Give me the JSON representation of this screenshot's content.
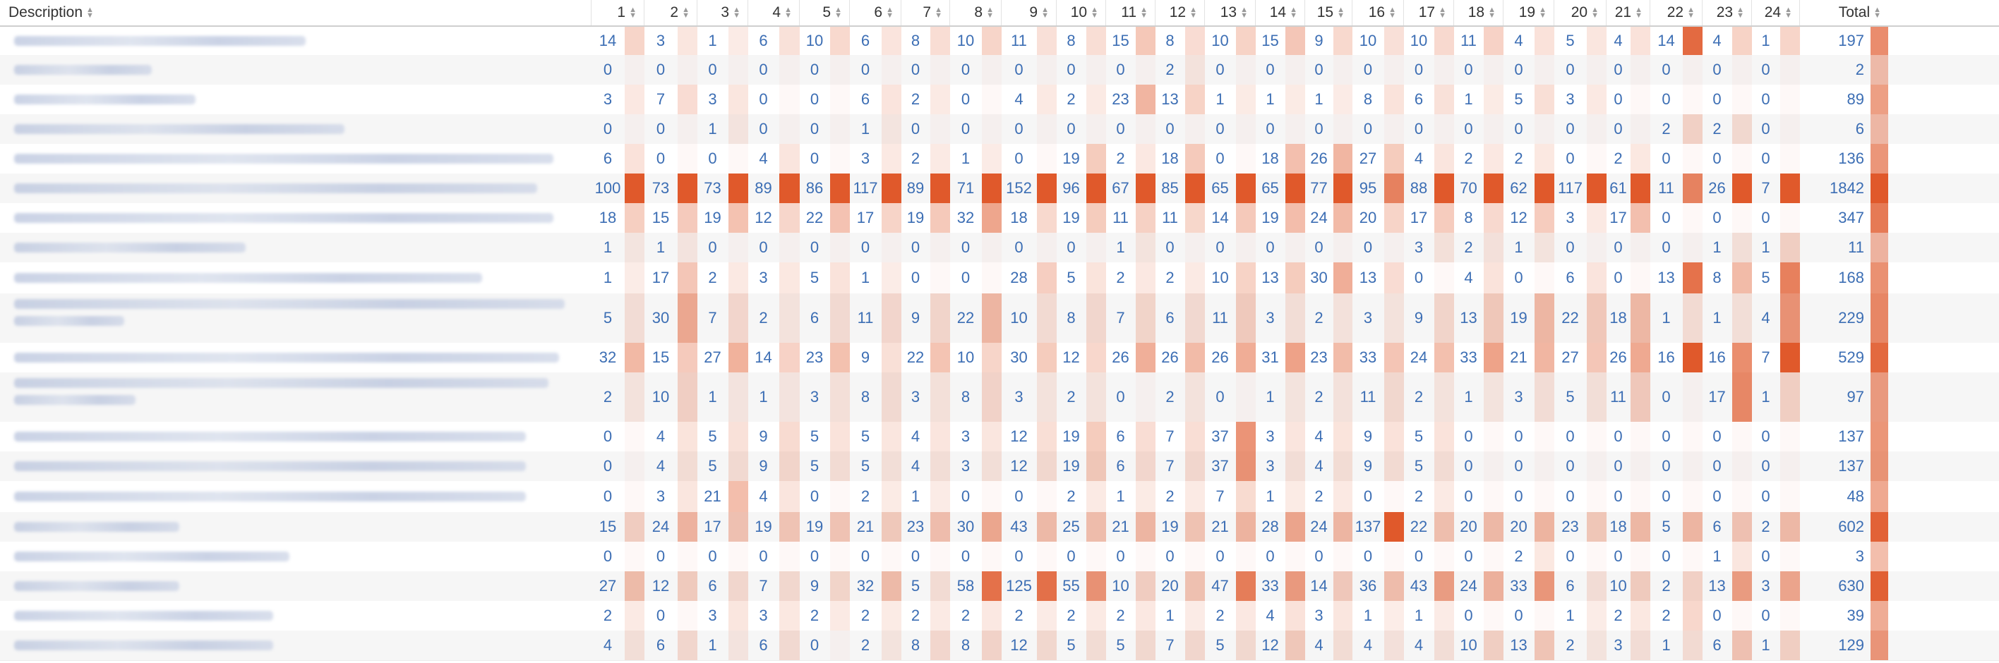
{
  "table": {
    "header": {
      "description_label": "Description",
      "columns": [
        "1",
        "2",
        "3",
        "4",
        "5",
        "6",
        "7",
        "8",
        "9",
        "10",
        "11",
        "12",
        "13",
        "14",
        "15",
        "16",
        "17",
        "18",
        "19",
        "20",
        "21",
        "22",
        "23",
        "24"
      ],
      "total_label": "Total",
      "sort_icon": "sort-icon"
    },
    "rows": [
      {
        "desc_lines": [
          0.53
        ],
        "values": [
          14,
          3,
          1,
          6,
          10,
          6,
          8,
          10,
          11,
          8,
          15,
          8,
          10,
          15,
          9,
          10,
          10,
          11,
          4,
          5,
          4,
          14,
          4,
          1
        ],
        "total": 197
      },
      {
        "desc_lines": [
          0.25
        ],
        "values": [
          0,
          0,
          0,
          0,
          0,
          0,
          0,
          0,
          0,
          0,
          0,
          2,
          0,
          0,
          0,
          0,
          0,
          0,
          0,
          0,
          0,
          0,
          0,
          0
        ],
        "total": 2
      },
      {
        "desc_lines": [
          0.33
        ],
        "values": [
          3,
          7,
          3,
          0,
          0,
          6,
          2,
          0,
          4,
          2,
          23,
          13,
          1,
          1,
          1,
          8,
          6,
          1,
          5,
          3,
          0,
          0,
          0,
          0
        ],
        "total": 89
      },
      {
        "desc_lines": [
          0.6
        ],
        "values": [
          0,
          0,
          1,
          0,
          0,
          1,
          0,
          0,
          0,
          0,
          0,
          0,
          0,
          0,
          0,
          0,
          0,
          0,
          0,
          0,
          0,
          2,
          2,
          0
        ],
        "total": 6
      },
      {
        "desc_lines": [
          0.98
        ],
        "values": [
          6,
          0,
          0,
          4,
          0,
          3,
          2,
          1,
          0,
          19,
          2,
          18,
          0,
          18,
          26,
          27,
          4,
          2,
          2,
          0,
          2,
          0,
          0,
          0
        ],
        "total": 136
      },
      {
        "desc_lines": [
          0.95
        ],
        "values": [
          100,
          73,
          73,
          89,
          86,
          117,
          89,
          71,
          152,
          96,
          67,
          85,
          65,
          65,
          77,
          95,
          88,
          70,
          62,
          117,
          61,
          11,
          26,
          7
        ],
        "total": 1842
      },
      {
        "desc_lines": [
          0.98
        ],
        "values": [
          18,
          15,
          19,
          12,
          22,
          17,
          19,
          32,
          18,
          19,
          11,
          11,
          14,
          19,
          24,
          20,
          17,
          8,
          12,
          3,
          17,
          0,
          0,
          0
        ],
        "total": 347
      },
      {
        "desc_lines": [
          0.42
        ],
        "values": [
          1,
          1,
          0,
          0,
          0,
          0,
          0,
          0,
          0,
          0,
          1,
          0,
          0,
          0,
          0,
          0,
          3,
          2,
          1,
          0,
          0,
          0,
          1,
          1
        ],
        "total": 11
      },
      {
        "desc_lines": [
          0.85
        ],
        "values": [
          1,
          17,
          2,
          3,
          5,
          1,
          0,
          0,
          28,
          5,
          2,
          2,
          10,
          13,
          30,
          13,
          0,
          4,
          0,
          6,
          0,
          13,
          8,
          5
        ],
        "total": 168
      },
      {
        "desc_lines": [
          1.0,
          0.2
        ],
        "values": [
          5,
          30,
          7,
          2,
          6,
          11,
          9,
          22,
          10,
          8,
          7,
          6,
          11,
          3,
          2,
          3,
          9,
          13,
          19,
          22,
          18,
          1,
          1,
          4
        ],
        "total": 229
      },
      {
        "desc_lines": [
          0.99
        ],
        "values": [
          32,
          15,
          27,
          14,
          23,
          9,
          22,
          10,
          30,
          12,
          26,
          26,
          26,
          31,
          23,
          33,
          24,
          33,
          21,
          27,
          26,
          16,
          16,
          7
        ],
        "total": 529
      },
      {
        "desc_lines": [
          0.97,
          0.22
        ],
        "values": [
          2,
          10,
          1,
          1,
          3,
          8,
          3,
          8,
          3,
          2,
          0,
          2,
          0,
          1,
          2,
          11,
          2,
          1,
          3,
          5,
          11,
          0,
          17,
          1
        ],
        "total": 97
      },
      {
        "desc_lines": [
          0.93
        ],
        "values": [
          0,
          4,
          5,
          9,
          5,
          5,
          4,
          3,
          12,
          19,
          6,
          7,
          37,
          3,
          4,
          9,
          5,
          0,
          0,
          0,
          0,
          0,
          0,
          0
        ],
        "total": 137
      },
      {
        "desc_lines": [
          0.93
        ],
        "values": [
          0,
          4,
          5,
          9,
          5,
          5,
          4,
          3,
          12,
          19,
          6,
          7,
          37,
          3,
          4,
          9,
          5,
          0,
          0,
          0,
          0,
          0,
          0,
          0
        ],
        "total": 137
      },
      {
        "desc_lines": [
          0.93
        ],
        "values": [
          0,
          3,
          21,
          4,
          0,
          2,
          1,
          0,
          0,
          2,
          1,
          2,
          7,
          1,
          2,
          0,
          2,
          0,
          0,
          0,
          0,
          0,
          0,
          0
        ],
        "total": 48
      },
      {
        "desc_lines": [
          0.3
        ],
        "values": [
          15,
          24,
          17,
          19,
          19,
          21,
          23,
          30,
          43,
          25,
          21,
          19,
          21,
          28,
          24,
          137,
          22,
          20,
          20,
          23,
          18,
          5,
          6,
          2
        ],
        "total": 602
      },
      {
        "desc_lines": [
          0.5
        ],
        "values": [
          0,
          0,
          0,
          0,
          0,
          0,
          0,
          0,
          0,
          0,
          0,
          0,
          0,
          0,
          0,
          0,
          0,
          0,
          2,
          0,
          0,
          0,
          1,
          0
        ],
        "total": 3
      },
      {
        "desc_lines": [
          0.3
        ],
        "values": [
          27,
          12,
          6,
          7,
          9,
          32,
          5,
          58,
          125,
          55,
          10,
          20,
          47,
          33,
          14,
          36,
          43,
          24,
          33,
          6,
          10,
          2,
          13,
          3
        ],
        "total": 630
      },
      {
        "desc_lines": [
          0.47
        ],
        "values": [
          2,
          0,
          3,
          3,
          2,
          2,
          2,
          2,
          2,
          2,
          2,
          1,
          2,
          4,
          3,
          1,
          1,
          0,
          0,
          1,
          2,
          2,
          0,
          0
        ],
        "total": 39
      },
      {
        "desc_lines": [
          0.47
        ],
        "values": [
          4,
          6,
          1,
          6,
          0,
          2,
          8,
          8,
          12,
          5,
          5,
          7,
          5,
          12,
          4,
          4,
          4,
          10,
          13,
          2,
          3,
          1,
          6,
          1
        ],
        "total": 129
      }
    ],
    "colors": {
      "heat": "#e0592b",
      "link_blue": "#3c6eb4",
      "row_alt": "#f6f6f6",
      "header_border": "#cfcfcf"
    }
  }
}
